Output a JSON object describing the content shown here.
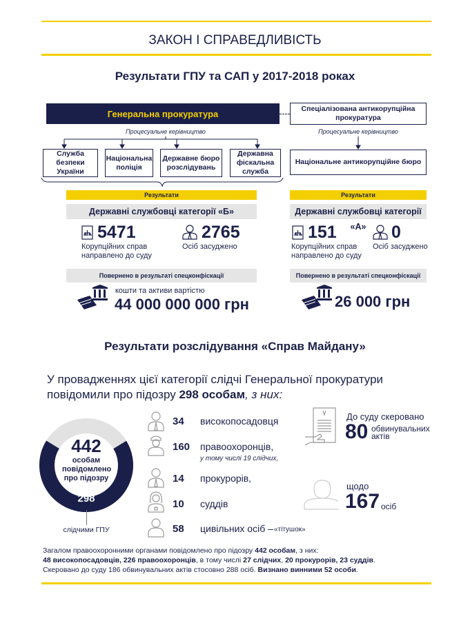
{
  "header": {
    "title": "ЗАКОН І СПРАВЕДЛИВІСТЬ",
    "subtitle": "Результати ГПУ та САП у 2017-2018 роках"
  },
  "org": {
    "gp": "Генеральна прокуратура",
    "sap": "Спеціалізована антикорупційна прокуратура",
    "proc_label_left": "Процесуальне керівництво",
    "proc_label_right": "Процесуальне керівництво",
    "agencies": [
      "Служба безпеки України",
      "Національна поліція",
      "Державне бюро розслідувань",
      "Державна фіскальна служба"
    ],
    "nabu": "Національне антикорупційне бюро"
  },
  "results": [
    {
      "header": "Результати",
      "category": "Державні службовці категорії «Б»",
      "cases": "5471",
      "cases_label": "Корупційних справ направлено до суду",
      "convicted": "2765",
      "convicted_label": "Осіб засуджено",
      "returned_header": "Повернено в  результаті спецконфіскації",
      "amount_prefix": "кошти та активи вартістю",
      "amount": "44 000 000 000 грн"
    },
    {
      "header": "Результати",
      "category": "Державні службовці категорії «А»",
      "cases": "151",
      "cases_label": "Корупційних справ направлено до суду",
      "convicted": "0",
      "convicted_label": "Осіб засуджено",
      "returned_header": "Повернено в  результаті спецконфіскації",
      "amount": "26 000 грн"
    }
  ],
  "maidan": {
    "title": "Результати розслідування «Справ Майдану»",
    "intro_1": "У провадженнях цієї категорії слідчі Генеральної прокуратури повідомили про підозру ",
    "intro_bold": "298 особам",
    "intro_2": ", з них:",
    "donut": {
      "total": "442",
      "total_label": "особам повідомлено про підозру",
      "part": "298",
      "part_label": "слідчими ГПУ",
      "colors": {
        "part": "#1a1f4a",
        "rest": "#e2e2e2"
      }
    },
    "groups": [
      {
        "icon": "official-icon",
        "value": "34",
        "label": "високопосадовця"
      },
      {
        "icon": "police-icon",
        "value": "160",
        "label": "правоохоронців,",
        "note": "у тому числі 19 слідчих,"
      },
      {
        "icon": "prosecutor-icon",
        "value": "14",
        "label": "прокурорів,"
      },
      {
        "icon": "judge-icon",
        "value": "10",
        "label": "суддів"
      },
      {
        "icon": "civilian-icon",
        "value": "58",
        "label": "цивільних осіб –",
        "note": "«тітушок»"
      }
    ],
    "court": {
      "label": "До суду скеровано",
      "value": "80",
      "unit": "обвинувальних актів"
    },
    "persons": {
      "label": "щодо",
      "value": "167",
      "unit": "осіб"
    },
    "summary": {
      "l1a": "Загалом правоохоронними органами повідомлено про підозру ",
      "l1b": "442 особам",
      "l1c": ", з них:",
      "l2a": "48 високопосадовців, 226 правоохоронців",
      "l2b": ", в тому числі ",
      "l2c": "27 слідчих",
      "l2d": ", ",
      "l2e": "20 прокурорів, 23 суддів",
      "l3a": "Скеровано до суду 186 обвинувальних актів стосовно 288 осіб. ",
      "l3b": "Визнано винними 52 особи"
    }
  }
}
